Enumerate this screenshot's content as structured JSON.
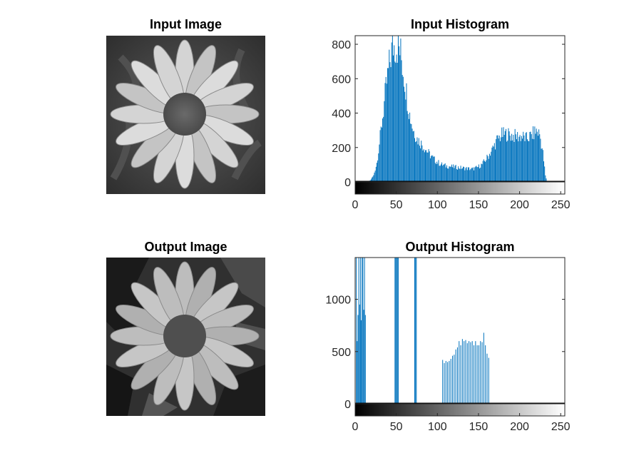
{
  "figure": {
    "input_image_title": "Input Image",
    "output_image_title": "Output Image",
    "input_image_icon": "flower-grayscale-photo",
    "output_image_icon": "flower-quantized-photo"
  },
  "chart_data": [
    {
      "type": "bar",
      "title": "Input Histogram",
      "xlabel": "",
      "ylabel": "",
      "xlim": [
        0,
        255
      ],
      "ylim": [
        0,
        850
      ],
      "xticks": [
        "0",
        "50",
        "100",
        "150",
        "200",
        "250"
      ],
      "yticks": [
        "0",
        "200",
        "400",
        "600",
        "800"
      ],
      "xtick_values": [
        0,
        50,
        100,
        150,
        200,
        250
      ],
      "ytick_values": [
        0,
        200,
        400,
        600,
        800
      ],
      "bar_color": "#0072BD",
      "colorbar": "gray",
      "anchors": [
        [
          0,
          0
        ],
        [
          14,
          0
        ],
        [
          18,
          10
        ],
        [
          22,
          40
        ],
        [
          26,
          120
        ],
        [
          30,
          280
        ],
        [
          34,
          450
        ],
        [
          38,
          620
        ],
        [
          42,
          760
        ],
        [
          45,
          850
        ],
        [
          48,
          850
        ],
        [
          52,
          850
        ],
        [
          55,
          800
        ],
        [
          58,
          700
        ],
        [
          62,
          560
        ],
        [
          66,
          420
        ],
        [
          70,
          330
        ],
        [
          75,
          270
        ],
        [
          80,
          240
        ],
        [
          86,
          200
        ],
        [
          92,
          160
        ],
        [
          98,
          130
        ],
        [
          104,
          110
        ],
        [
          110,
          100
        ],
        [
          118,
          95
        ],
        [
          126,
          90
        ],
        [
          134,
          85
        ],
        [
          142,
          80
        ],
        [
          148,
          90
        ],
        [
          154,
          110
        ],
        [
          160,
          150
        ],
        [
          166,
          200
        ],
        [
          172,
          260
        ],
        [
          178,
          295
        ],
        [
          184,
          300
        ],
        [
          190,
          290
        ],
        [
          196,
          285
        ],
        [
          202,
          285
        ],
        [
          208,
          270
        ],
        [
          214,
          290
        ],
        [
          220,
          320
        ],
        [
          224,
          300
        ],
        [
          228,
          180
        ],
        [
          231,
          40
        ],
        [
          233,
          0
        ],
        [
          255,
          0
        ]
      ]
    },
    {
      "type": "bar",
      "title": "Output Histogram",
      "xlabel": "",
      "ylabel": "",
      "xlim": [
        0,
        255
      ],
      "ylim": [
        0,
        1400
      ],
      "xticks": [
        "0",
        "50",
        "100",
        "150",
        "200",
        "250"
      ],
      "yticks": [
        "0",
        "500",
        "1000"
      ],
      "xtick_values": [
        0,
        50,
        100,
        150,
        200,
        250
      ],
      "ytick_values": [
        0,
        500,
        1000
      ],
      "bar_color": "#0072BD",
      "colorbar": "gray",
      "bars": [
        [
          1,
          1400
        ],
        [
          2,
          600
        ],
        [
          3,
          850
        ],
        [
          4,
          1400
        ],
        [
          5,
          950
        ],
        [
          6,
          1400
        ],
        [
          7,
          800
        ],
        [
          8,
          1400
        ],
        [
          9,
          1400
        ],
        [
          10,
          900
        ],
        [
          11,
          1400
        ],
        [
          12,
          850
        ],
        [
          48,
          1400
        ],
        [
          49,
          1400
        ],
        [
          50,
          1400
        ],
        [
          51,
          1400
        ],
        [
          52,
          1400
        ],
        [
          72,
          1400
        ],
        [
          73,
          1400
        ],
        [
          74,
          1400
        ],
        [
          106,
          420
        ],
        [
          108,
          390
        ],
        [
          110,
          410
        ],
        [
          112,
          400
        ],
        [
          114,
          410
        ],
        [
          116,
          430
        ],
        [
          118,
          460
        ],
        [
          120,
          470
        ],
        [
          122,
          520
        ],
        [
          124,
          540
        ],
        [
          126,
          600
        ],
        [
          128,
          560
        ],
        [
          130,
          620
        ],
        [
          132,
          600
        ],
        [
          134,
          610
        ],
        [
          136,
          580
        ],
        [
          138,
          600
        ],
        [
          140,
          590
        ],
        [
          142,
          600
        ],
        [
          144,
          560
        ],
        [
          146,
          600
        ],
        [
          148,
          560
        ],
        [
          150,
          560
        ],
        [
          152,
          600
        ],
        [
          154,
          590
        ],
        [
          156,
          680
        ],
        [
          158,
          560
        ],
        [
          160,
          480
        ],
        [
          162,
          440
        ]
      ]
    }
  ]
}
